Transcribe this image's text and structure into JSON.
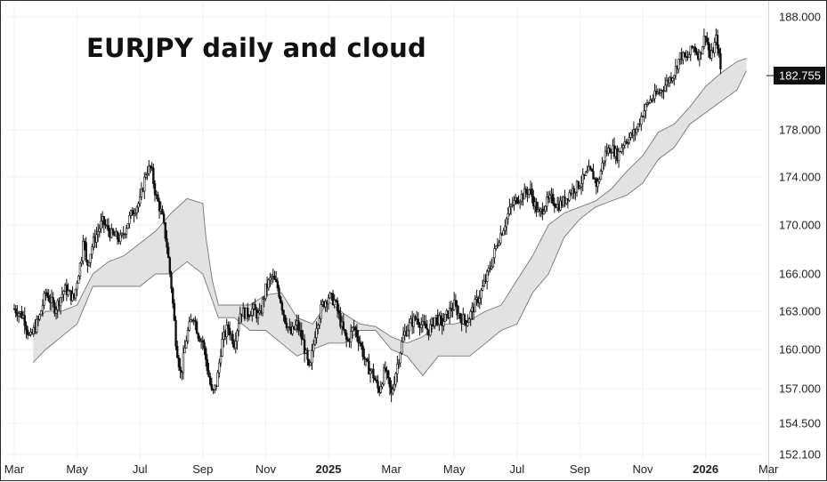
{
  "chart_data": {
    "type": "candlestick",
    "title": "EURJPY daily and cloud",
    "y_ticks": [
      "188.000",
      "182.755",
      "178.000",
      "174.000",
      "170.000",
      "166.000",
      "163.000",
      "160.000",
      "157.000",
      "154.500",
      "152.100"
    ],
    "y_tick_values": [
      188.0,
      182.755,
      178.0,
      174.0,
      170.0,
      166.0,
      163.0,
      160.0,
      157.0,
      154.5,
      152.1
    ],
    "x_ticks": [
      {
        "label": "Mar",
        "bold": false,
        "month_index": 0
      },
      {
        "label": "May",
        "bold": false,
        "month_index": 2
      },
      {
        "label": "Jul",
        "bold": false,
        "month_index": 4
      },
      {
        "label": "Sep",
        "bold": false,
        "month_index": 6
      },
      {
        "label": "Nov",
        "bold": false,
        "month_index": 8
      },
      {
        "label": "2025",
        "bold": true,
        "month_index": 10
      },
      {
        "label": "Mar",
        "bold": false,
        "month_index": 12
      },
      {
        "label": "May",
        "bold": false,
        "month_index": 14
      },
      {
        "label": "Jul",
        "bold": false,
        "month_index": 16
      },
      {
        "label": "Sep",
        "bold": false,
        "month_index": 18
      },
      {
        "label": "Nov",
        "bold": false,
        "month_index": 20
      },
      {
        "label": "2026",
        "bold": true,
        "month_index": 22
      },
      {
        "label": "Mar",
        "bold": false,
        "month_index": 24
      }
    ],
    "last_price": "182.755",
    "price_path": [
      {
        "m": 0.0,
        "v": 163.2
      },
      {
        "m": 0.3,
        "v": 162.6
      },
      {
        "m": 0.5,
        "v": 160.8
      },
      {
        "m": 0.8,
        "v": 162.5
      },
      {
        "m": 1.0,
        "v": 164.5
      },
      {
        "m": 1.3,
        "v": 163.2
      },
      {
        "m": 1.6,
        "v": 164.8
      },
      {
        "m": 1.9,
        "v": 164.0
      },
      {
        "m": 2.0,
        "v": 165.5
      },
      {
        "m": 2.15,
        "v": 167.5
      },
      {
        "m": 2.2,
        "v": 169.5
      },
      {
        "m": 2.3,
        "v": 166.5
      },
      {
        "m": 2.5,
        "v": 168.5
      },
      {
        "m": 2.8,
        "v": 170.3
      },
      {
        "m": 3.1,
        "v": 169.2
      },
      {
        "m": 3.4,
        "v": 168.8
      },
      {
        "m": 3.7,
        "v": 170.8
      },
      {
        "m": 4.0,
        "v": 172.0
      },
      {
        "m": 4.2,
        "v": 174.5
      },
      {
        "m": 4.35,
        "v": 174.8
      },
      {
        "m": 4.5,
        "v": 172.5
      },
      {
        "m": 4.7,
        "v": 170.8
      },
      {
        "m": 4.85,
        "v": 168.5
      },
      {
        "m": 5.0,
        "v": 165.0
      },
      {
        "m": 5.15,
        "v": 160.5
      },
      {
        "m": 5.3,
        "v": 158.0
      },
      {
        "m": 5.5,
        "v": 161.2
      },
      {
        "m": 5.7,
        "v": 162.8
      },
      {
        "m": 5.85,
        "v": 161.2
      },
      {
        "m": 6.0,
        "v": 160.6
      },
      {
        "m": 6.15,
        "v": 158.5
      },
      {
        "m": 6.3,
        "v": 156.5
      },
      {
        "m": 6.45,
        "v": 157.5
      },
      {
        "m": 6.6,
        "v": 160.5
      },
      {
        "m": 6.8,
        "v": 161.8
      },
      {
        "m": 7.0,
        "v": 160.5
      },
      {
        "m": 7.2,
        "v": 163.0
      },
      {
        "m": 7.4,
        "v": 162.8
      },
      {
        "m": 7.6,
        "v": 163.2
      },
      {
        "m": 7.8,
        "v": 162.5
      },
      {
        "m": 8.0,
        "v": 164.8
      },
      {
        "m": 8.2,
        "v": 165.8
      },
      {
        "m": 8.4,
        "v": 164.8
      },
      {
        "m": 8.6,
        "v": 162.5
      },
      {
        "m": 8.8,
        "v": 161.2
      },
      {
        "m": 9.0,
        "v": 162.0
      },
      {
        "m": 9.2,
        "v": 160.5
      },
      {
        "m": 9.4,
        "v": 158.2
      },
      {
        "m": 9.6,
        "v": 161.8
      },
      {
        "m": 9.8,
        "v": 163.5
      },
      {
        "m": 10.0,
        "v": 164.2
      },
      {
        "m": 10.2,
        "v": 163.8
      },
      {
        "m": 10.4,
        "v": 162.0
      },
      {
        "m": 10.6,
        "v": 160.5
      },
      {
        "m": 10.8,
        "v": 161.8
      },
      {
        "m": 11.0,
        "v": 160.6
      },
      {
        "m": 11.2,
        "v": 158.8
      },
      {
        "m": 11.4,
        "v": 158.2
      },
      {
        "m": 11.6,
        "v": 156.8
      },
      {
        "m": 11.8,
        "v": 158.5
      },
      {
        "m": 12.0,
        "v": 156.5
      },
      {
        "m": 12.2,
        "v": 159.0
      },
      {
        "m": 12.4,
        "v": 161.2
      },
      {
        "m": 12.6,
        "v": 162.0
      },
      {
        "m": 12.8,
        "v": 162.5
      },
      {
        "m": 13.0,
        "v": 161.8
      },
      {
        "m": 13.2,
        "v": 161.5
      },
      {
        "m": 13.4,
        "v": 162.6
      },
      {
        "m": 13.6,
        "v": 162.0
      },
      {
        "m": 13.8,
        "v": 162.8
      },
      {
        "m": 14.0,
        "v": 163.5
      },
      {
        "m": 14.2,
        "v": 162.5
      },
      {
        "m": 14.4,
        "v": 162.2
      },
      {
        "m": 14.6,
        "v": 163.2
      },
      {
        "m": 14.8,
        "v": 164.2
      },
      {
        "m": 15.0,
        "v": 165.5
      },
      {
        "m": 15.2,
        "v": 167.0
      },
      {
        "m": 15.4,
        "v": 168.8
      },
      {
        "m": 15.6,
        "v": 170.0
      },
      {
        "m": 15.8,
        "v": 171.5
      },
      {
        "m": 16.0,
        "v": 172.2
      },
      {
        "m": 16.2,
        "v": 172.5
      },
      {
        "m": 16.4,
        "v": 173.0
      },
      {
        "m": 16.55,
        "v": 171.8
      },
      {
        "m": 16.7,
        "v": 170.8
      },
      {
        "m": 16.9,
        "v": 171.8
      },
      {
        "m": 17.1,
        "v": 172.2
      },
      {
        "m": 17.3,
        "v": 171.6
      },
      {
        "m": 17.5,
        "v": 172.0
      },
      {
        "m": 17.7,
        "v": 172.8
      },
      {
        "m": 17.9,
        "v": 173.2
      },
      {
        "m": 18.1,
        "v": 173.8
      },
      {
        "m": 18.3,
        "v": 174.5
      },
      {
        "m": 18.45,
        "v": 174.0
      },
      {
        "m": 18.55,
        "v": 173.2
      },
      {
        "m": 18.8,
        "v": 176.0
      },
      {
        "m": 19.0,
        "v": 176.5
      },
      {
        "m": 19.2,
        "v": 175.8
      },
      {
        "m": 19.4,
        "v": 177.0
      },
      {
        "m": 19.6,
        "v": 177.4
      },
      {
        "m": 19.8,
        "v": 178.0
      },
      {
        "m": 20.0,
        "v": 179.5
      },
      {
        "m": 20.2,
        "v": 180.5
      },
      {
        "m": 20.4,
        "v": 181.0
      },
      {
        "m": 20.6,
        "v": 181.5
      },
      {
        "m": 20.8,
        "v": 182.3
      },
      {
        "m": 21.0,
        "v": 183.0
      },
      {
        "m": 21.2,
        "v": 184.6
      },
      {
        "m": 21.4,
        "v": 184.2
      },
      {
        "m": 21.6,
        "v": 185.4
      },
      {
        "m": 21.8,
        "v": 184.5
      },
      {
        "m": 22.0,
        "v": 186.5
      },
      {
        "m": 22.15,
        "v": 184.2
      },
      {
        "m": 22.35,
        "v": 186.2
      },
      {
        "m": 22.5,
        "v": 182.755
      }
    ],
    "cloud_a": [
      {
        "m": 0.6,
        "v": 162.0
      },
      {
        "m": 1.0,
        "v": 163.0
      },
      {
        "m": 1.5,
        "v": 163.0
      },
      {
        "m": 2.0,
        "v": 163.5
      },
      {
        "m": 2.5,
        "v": 166.0
      },
      {
        "m": 3.0,
        "v": 167.0
      },
      {
        "m": 3.5,
        "v": 167.5
      },
      {
        "m": 4.0,
        "v": 168.5
      },
      {
        "m": 4.5,
        "v": 169.5
      },
      {
        "m": 5.0,
        "v": 171.0
      },
      {
        "m": 5.5,
        "v": 172.2
      },
      {
        "m": 6.0,
        "v": 171.8
      },
      {
        "m": 6.1,
        "v": 169.0
      },
      {
        "m": 6.3,
        "v": 165.5
      },
      {
        "m": 6.5,
        "v": 163.5
      },
      {
        "m": 7.0,
        "v": 163.5
      },
      {
        "m": 7.5,
        "v": 163.5
      },
      {
        "m": 8.0,
        "v": 164.3
      },
      {
        "m": 8.5,
        "v": 164.5
      },
      {
        "m": 9.0,
        "v": 162.5
      },
      {
        "m": 9.5,
        "v": 162.0
      },
      {
        "m": 10.0,
        "v": 163.8
      },
      {
        "m": 10.5,
        "v": 162.8
      },
      {
        "m": 11.0,
        "v": 162.0
      },
      {
        "m": 11.5,
        "v": 161.8
      },
      {
        "m": 12.0,
        "v": 161.0
      },
      {
        "m": 12.5,
        "v": 160.5
      },
      {
        "m": 13.0,
        "v": 161.0
      },
      {
        "m": 13.5,
        "v": 162.0
      },
      {
        "m": 14.0,
        "v": 162.0
      },
      {
        "m": 14.5,
        "v": 162.3
      },
      {
        "m": 15.0,
        "v": 163.0
      },
      {
        "m": 15.5,
        "v": 163.5
      },
      {
        "m": 16.0,
        "v": 165.5
      },
      {
        "m": 16.5,
        "v": 167.5
      },
      {
        "m": 17.0,
        "v": 170.0
      },
      {
        "m": 17.5,
        "v": 171.0
      },
      {
        "m": 18.0,
        "v": 171.5
      },
      {
        "m": 18.5,
        "v": 172.0
      },
      {
        "m": 19.0,
        "v": 173.0
      },
      {
        "m": 19.5,
        "v": 174.5
      },
      {
        "m": 20.0,
        "v": 175.8
      },
      {
        "m": 20.5,
        "v": 177.8
      },
      {
        "m": 21.0,
        "v": 178.5
      },
      {
        "m": 21.5,
        "v": 180.0
      },
      {
        "m": 22.0,
        "v": 181.8
      },
      {
        "m": 22.5,
        "v": 183.0
      },
      {
        "m": 23.0,
        "v": 184.0
      },
      {
        "m": 23.3,
        "v": 184.3
      }
    ],
    "cloud_b": [
      {
        "m": 0.6,
        "v": 159.0
      },
      {
        "m": 1.0,
        "v": 160.0
      },
      {
        "m": 1.5,
        "v": 161.0
      },
      {
        "m": 2.0,
        "v": 162.0
      },
      {
        "m": 2.5,
        "v": 165.0
      },
      {
        "m": 3.0,
        "v": 165.0
      },
      {
        "m": 3.5,
        "v": 165.0
      },
      {
        "m": 4.0,
        "v": 165.0
      },
      {
        "m": 4.5,
        "v": 166.0
      },
      {
        "m": 5.0,
        "v": 166.0
      },
      {
        "m": 5.5,
        "v": 167.0
      },
      {
        "m": 6.0,
        "v": 166.0
      },
      {
        "m": 6.5,
        "v": 162.5
      },
      {
        "m": 7.0,
        "v": 162.5
      },
      {
        "m": 7.5,
        "v": 161.5
      },
      {
        "m": 8.0,
        "v": 161.5
      },
      {
        "m": 8.5,
        "v": 160.5
      },
      {
        "m": 9.0,
        "v": 159.5
      },
      {
        "m": 9.5,
        "v": 160.0
      },
      {
        "m": 10.0,
        "v": 160.5
      },
      {
        "m": 10.5,
        "v": 160.5
      },
      {
        "m": 11.0,
        "v": 161.5
      },
      {
        "m": 11.5,
        "v": 161.5
      },
      {
        "m": 12.0,
        "v": 160.0
      },
      {
        "m": 12.5,
        "v": 159.5
      },
      {
        "m": 13.0,
        "v": 158.0
      },
      {
        "m": 13.5,
        "v": 159.5
      },
      {
        "m": 14.0,
        "v": 159.5
      },
      {
        "m": 14.5,
        "v": 159.5
      },
      {
        "m": 15.0,
        "v": 160.5
      },
      {
        "m": 15.5,
        "v": 161.5
      },
      {
        "m": 16.0,
        "v": 162.0
      },
      {
        "m": 16.5,
        "v": 164.5
      },
      {
        "m": 17.0,
        "v": 166.0
      },
      {
        "m": 17.5,
        "v": 169.0
      },
      {
        "m": 18.0,
        "v": 170.5
      },
      {
        "m": 18.5,
        "v": 171.5
      },
      {
        "m": 19.0,
        "v": 172.0
      },
      {
        "m": 19.5,
        "v": 172.5
      },
      {
        "m": 20.0,
        "v": 173.5
      },
      {
        "m": 20.5,
        "v": 175.5
      },
      {
        "m": 21.0,
        "v": 176.5
      },
      {
        "m": 21.5,
        "v": 178.5
      },
      {
        "m": 22.0,
        "v": 179.5
      },
      {
        "m": 22.5,
        "v": 180.5
      },
      {
        "m": 23.0,
        "v": 181.5
      },
      {
        "m": 23.3,
        "v": 183.2
      }
    ],
    "colors": {
      "candle": "#111111",
      "cloud_fill": "#e2e2e2",
      "cloud_edge": "#777777",
      "last_price_bg": "#111111",
      "grid": "#f0f0f0"
    }
  }
}
